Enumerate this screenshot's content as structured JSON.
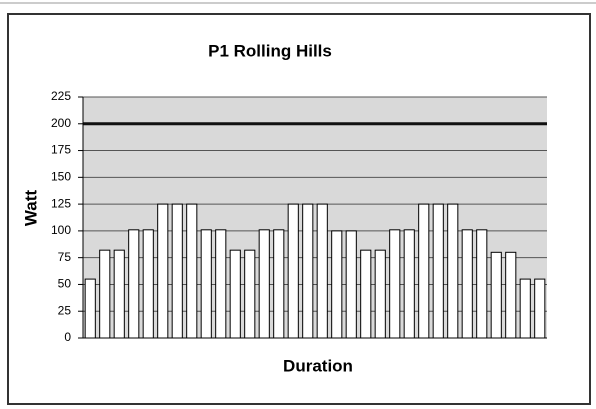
{
  "chart_data": {
    "type": "bar",
    "title": "P1 Rolling Hills",
    "x_label": "Duration",
    "y_label": "Watt",
    "categories": [
      null,
      null,
      null,
      null,
      null,
      null,
      null,
      null,
      null,
      null,
      null,
      null,
      null,
      null,
      null,
      null,
      null,
      null,
      null,
      null,
      null,
      null,
      null,
      null,
      null,
      null,
      null,
      null,
      null,
      null,
      null,
      null
    ],
    "values": [
      55,
      82,
      82,
      101,
      101,
      125,
      125,
      125,
      101,
      101,
      82,
      82,
      101,
      101,
      125,
      125,
      125,
      100,
      100,
      82,
      82,
      101,
      101,
      125,
      125,
      125,
      101,
      101,
      80,
      80,
      55,
      55
    ],
    "color": "#ffffff",
    "ylim": [
      0,
      225
    ],
    "yticks": [
      0,
      25,
      50,
      75,
      100,
      125,
      150,
      175,
      200,
      225
    ],
    "grid": true,
    "reference_line": 200
  }
}
